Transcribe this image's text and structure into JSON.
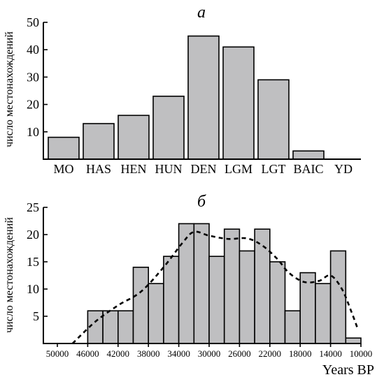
{
  "colors": {
    "bar_fill": "#bfbfc1",
    "stroke": "#000000",
    "background": "#ffffff"
  },
  "chart_data": [
    {
      "type": "bar",
      "panel_label": "а",
      "ylabel": "число местонахождений",
      "xlabel": "",
      "categories": [
        "MO",
        "HAS",
        "HEN",
        "HUN",
        "DEN",
        "LGM",
        "LGT",
        "BAIC",
        "YD"
      ],
      "values": [
        8,
        13,
        16,
        23,
        45,
        41,
        29,
        3,
        0
      ],
      "yticks": [
        10,
        20,
        30,
        40,
        50
      ],
      "ylim": [
        0,
        50
      ],
      "grid": false
    },
    {
      "type": "bar",
      "panel_label": "б",
      "ylabel": "число местонахождений",
      "xlabel": "Years BP",
      "x_bin_width": 2000,
      "x_bin_starts": [
        46000,
        44000,
        42000,
        40000,
        38000,
        36000,
        34000,
        32000,
        30000,
        28000,
        26000,
        24000,
        22000,
        20000,
        18000,
        16000,
        14000,
        12000,
        10000
      ],
      "values": [
        6,
        6,
        6,
        14,
        11,
        16,
        22,
        22,
        16,
        21,
        17,
        21,
        15,
        6,
        13,
        11,
        17,
        1
      ],
      "xticks": [
        "50000",
        "46000",
        "42000",
        "38000",
        "34000",
        "30000",
        "26000",
        "22000",
        "18000",
        "14000",
        "10000"
      ],
      "xtick_values": [
        50000,
        46000,
        42000,
        38000,
        34000,
        30000,
        26000,
        22000,
        18000,
        14000,
        10000
      ],
      "yticks": [
        5,
        10,
        15,
        20,
        25
      ],
      "ylim": [
        0,
        25
      ],
      "xlim": [
        50000,
        10000
      ],
      "trend_curve": {
        "style": "dashed",
        "x": [
          48000,
          45000,
          42000,
          39000,
          36000,
          33500,
          32000,
          30000,
          27500,
          25000,
          23000,
          21000,
          19500,
          17500,
          15500,
          14000,
          12500,
          11300,
          10500
        ],
        "y": [
          0,
          4,
          7,
          9.5,
          14,
          18.5,
          20.5,
          19.8,
          19.2,
          19.3,
          18,
          15.5,
          13,
          11.3,
          11.5,
          12.5,
          10,
          6,
          3
        ]
      },
      "grid": false
    }
  ]
}
